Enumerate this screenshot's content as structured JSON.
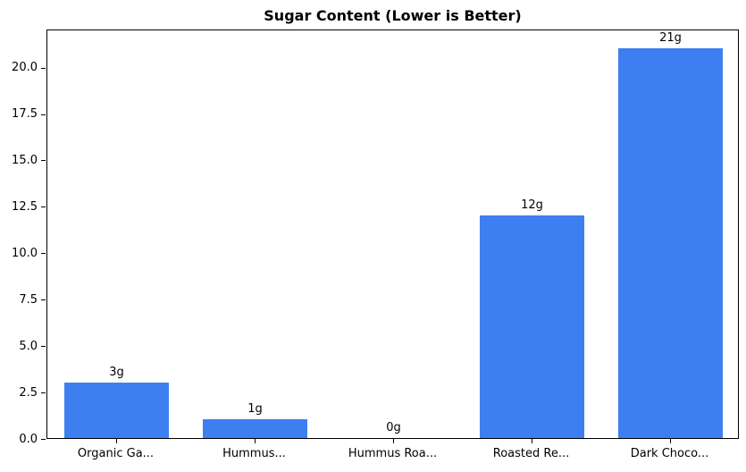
{
  "chart_data": {
    "type": "bar",
    "title": "Sugar Content (Lower is Better)",
    "categories": [
      "Organic Ga...",
      "Hummus...",
      "Hummus Roa...",
      "Roasted Re...",
      "Dark Choco..."
    ],
    "values": [
      3,
      1,
      0,
      12,
      21
    ],
    "value_labels": [
      "3g",
      "1g",
      "0g",
      "12g",
      "21g"
    ],
    "ylabel": "",
    "xlabel": "",
    "ylim": [
      0,
      22.05
    ],
    "yticks": [
      0,
      2.5,
      5,
      7.5,
      10,
      12.5,
      15,
      17.5,
      20
    ],
    "ytick_labels": [
      "0.0",
      "2.5",
      "5.0",
      "7.5",
      "10.0",
      "12.5",
      "15.0",
      "17.5",
      "20.0"
    ],
    "bar_color": "#3d7ff0",
    "axis_color": "#000000",
    "grid": false,
    "legend": null
  }
}
